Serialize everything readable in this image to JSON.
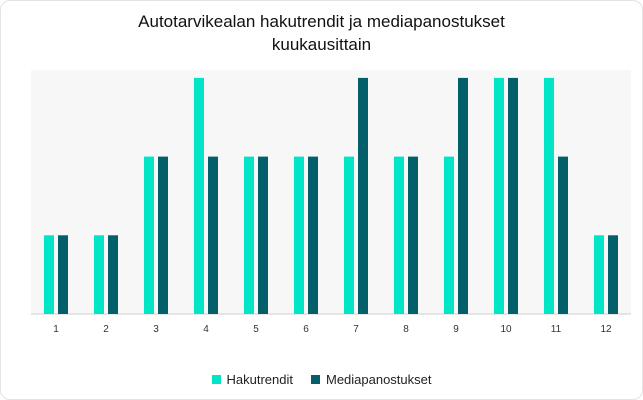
{
  "chart_data": {
    "type": "bar",
    "title_line1": "Autotarvikealan hakutrendit ja mediapanostukset",
    "title_line2": "kuukausittain",
    "categories": [
      "1",
      "2",
      "3",
      "4",
      "5",
      "6",
      "7",
      "8",
      "9",
      "10",
      "11",
      "12"
    ],
    "series": [
      {
        "name": "Hakutrendit",
        "color": "#00e5c6",
        "values": [
          1,
          1,
          2,
          3,
          2,
          2,
          2,
          2,
          2,
          3,
          3,
          1
        ]
      },
      {
        "name": "Mediapanostukset",
        "color": "#03606a",
        "values": [
          1,
          1,
          2,
          2,
          2,
          2,
          3,
          2,
          3,
          3,
          2,
          1
        ]
      }
    ],
    "ylim": [
      0,
      3.1
    ],
    "grid": false,
    "legend_position": "bottom-center",
    "plot_background": "#f7f7f7"
  }
}
